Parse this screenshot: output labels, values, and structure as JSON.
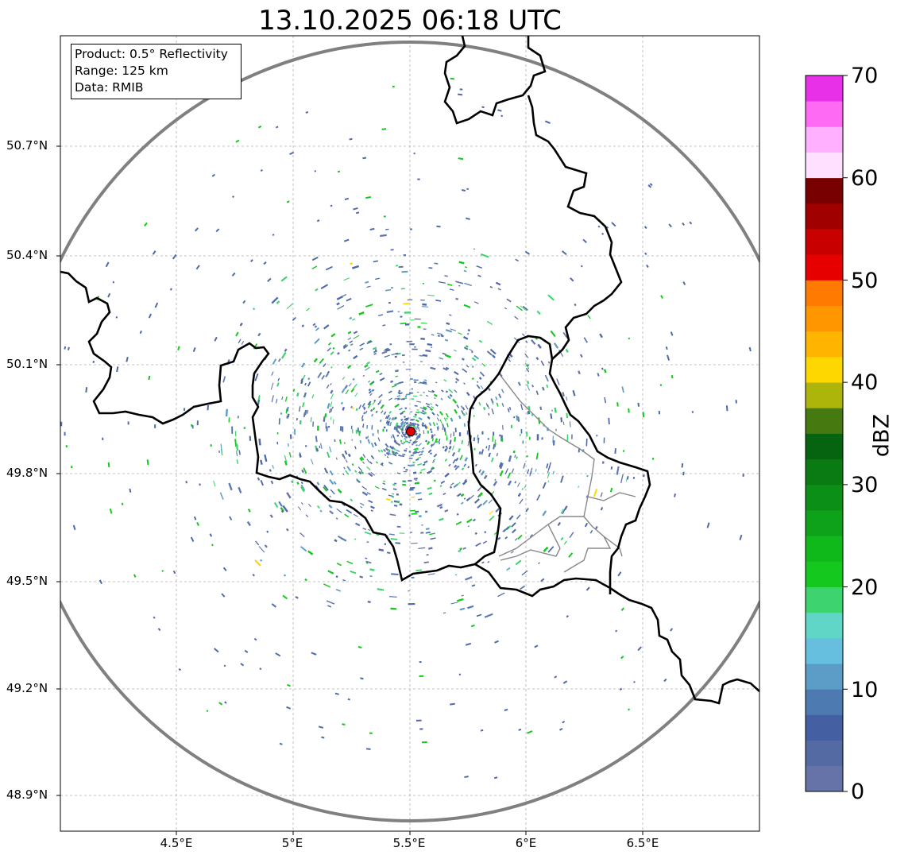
{
  "title": "13.10.2025 06:18 UTC",
  "info": {
    "product": "Product: 0.5° Reflectivity",
    "range": "Range: 125 km",
    "data_source": "Data: RMIB"
  },
  "axes": {
    "y_ticks": [
      "50.7°N",
      "50.4°N",
      "50.1°N",
      "49.8°N",
      "49.5°N",
      "49.2°N",
      "48.9°N"
    ],
    "x_ticks": [
      "4.5°E",
      "5°E",
      "5.5°E",
      "6°E",
      "6.5°E"
    ]
  },
  "colorbar": {
    "unit": "dBZ",
    "tick_labels": [
      "70",
      "60",
      "50",
      "40",
      "30",
      "20",
      "10",
      "0"
    ],
    "min": 0,
    "max": 70,
    "colors": [
      "#6673a8",
      "#546aa2",
      "#4460a2",
      "#4d7ab0",
      "#5b9dc7",
      "#66bfde",
      "#5fd6c6",
      "#3dd36e",
      "#14c81e",
      "#10b91a",
      "#0ea11a",
      "#0c8f16",
      "#0a7a12",
      "#066410",
      "#467a10",
      "#adb50a",
      "#ffd700",
      "#ffb400",
      "#ff9600",
      "#ff7a00",
      "#e60000",
      "#c80000",
      "#a00000",
      "#780000",
      "#ffe0ff",
      "#ffb0ff",
      "#ff6af4",
      "#e830e8"
    ]
  },
  "radar": {
    "site_color": "#e00000",
    "echo_color": "#4f6aa8",
    "ring_color": "#808080"
  }
}
